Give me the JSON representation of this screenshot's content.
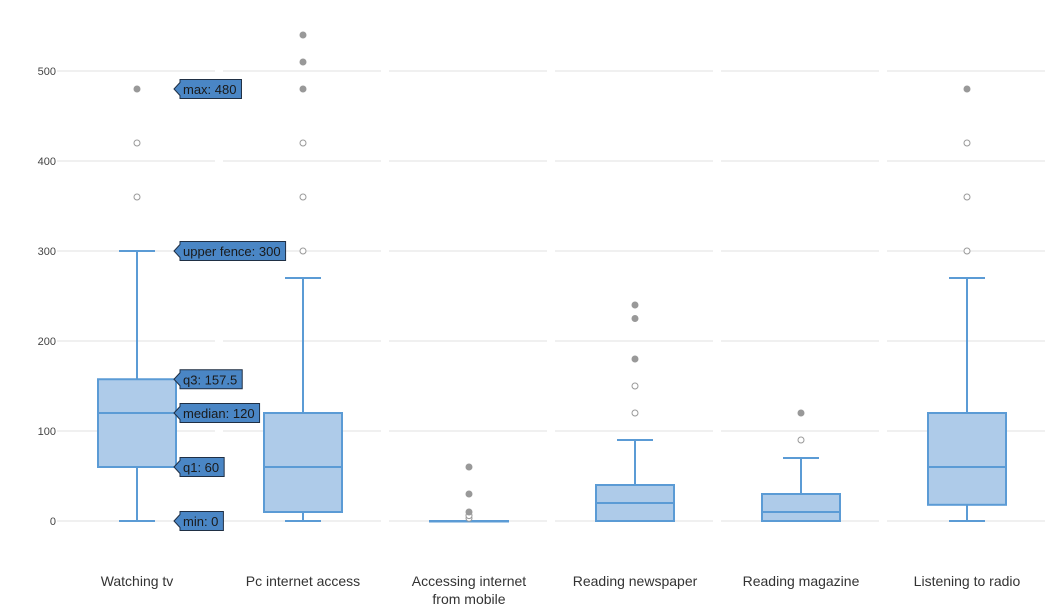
{
  "chart_data": {
    "type": "box",
    "title": "",
    "xlabel": "",
    "ylabel": "",
    "ylim": [
      -40,
      560
    ],
    "yticks": [
      0,
      100,
      200,
      300,
      400,
      500
    ],
    "grid": true,
    "colors": {
      "box_fill": "#aecbe9",
      "box_stroke": "#5b9bd5",
      "outlier": "#999999",
      "grid": "#e1e1e1",
      "tooltip_fill": "#4a86c5"
    },
    "categories": [
      {
        "name": [
          "Watching tv"
        ],
        "min": 0,
        "q1": 60,
        "median": 120,
        "q3": 157.5,
        "upper_fence": 300,
        "outliers": [
          {
            "value": 360,
            "filled": false
          },
          {
            "value": 420,
            "filled": false
          },
          {
            "value": 480,
            "filled": true
          }
        ]
      },
      {
        "name": [
          "Pc internet access"
        ],
        "min": 0,
        "q1": 10,
        "median": 60,
        "q3": 120,
        "upper_fence": 270,
        "outliers": [
          {
            "value": 300,
            "filled": false
          },
          {
            "value": 360,
            "filled": false
          },
          {
            "value": 420,
            "filled": false
          },
          {
            "value": 480,
            "filled": true
          },
          {
            "value": 510,
            "filled": true
          },
          {
            "value": 540,
            "filled": true
          }
        ]
      },
      {
        "name": [
          "Accessing internet",
          "from mobile"
        ],
        "min": 0,
        "q1": 0,
        "median": 0,
        "q3": 0,
        "upper_fence": 0,
        "outliers": [
          {
            "value": 3,
            "filled": false
          },
          {
            "value": 6,
            "filled": false
          },
          {
            "value": 10,
            "filled": true
          },
          {
            "value": 30,
            "filled": true
          },
          {
            "value": 60,
            "filled": true
          }
        ]
      },
      {
        "name": [
          "Reading newspaper"
        ],
        "min": 0,
        "q1": 0,
        "median": 20,
        "q3": 40,
        "upper_fence": 90,
        "outliers": [
          {
            "value": 120,
            "filled": false
          },
          {
            "value": 150,
            "filled": false
          },
          {
            "value": 180,
            "filled": true
          },
          {
            "value": 225,
            "filled": true
          },
          {
            "value": 240,
            "filled": true
          }
        ]
      },
      {
        "name": [
          "Reading magazine"
        ],
        "min": 0,
        "q1": 0,
        "median": 10,
        "q3": 30,
        "upper_fence": 70,
        "outliers": [
          {
            "value": 90,
            "filled": false
          },
          {
            "value": 120,
            "filled": true
          }
        ]
      },
      {
        "name": [
          "Listening to radio"
        ],
        "min": 0,
        "q1": 18,
        "median": 60,
        "q3": 120,
        "upper_fence": 270,
        "outliers": [
          {
            "value": 300,
            "filled": false
          },
          {
            "value": 360,
            "filled": false
          },
          {
            "value": 420,
            "filled": false
          },
          {
            "value": 480,
            "filled": true
          }
        ]
      }
    ],
    "tooltips": [
      {
        "text": "max: 480",
        "value": 480
      },
      {
        "text": "upper fence: 300",
        "value": 300
      },
      {
        "text": "q3: 157.5",
        "value": 157.5
      },
      {
        "text": "median: 120",
        "value": 120
      },
      {
        "text": "q1: 60",
        "value": 60
      },
      {
        "text": "min: 0",
        "value": 0
      }
    ]
  }
}
